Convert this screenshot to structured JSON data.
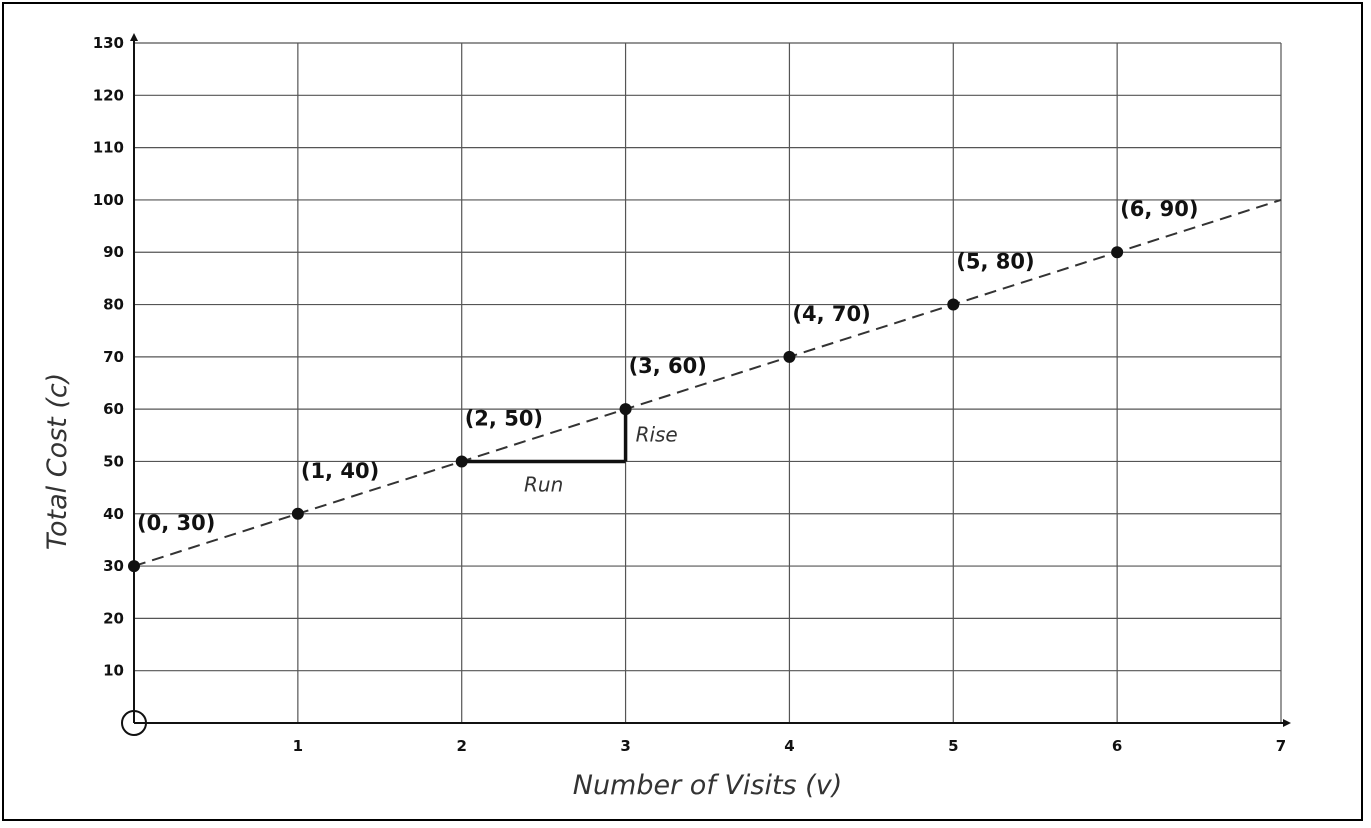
{
  "chart_data": {
    "type": "scatter",
    "xlabel": "Number of Visits (v)",
    "ylabel": "Total Cost (c)",
    "xlim": [
      0,
      7
    ],
    "ylim": [
      0,
      130
    ],
    "x_ticks": [
      "1",
      "2",
      "3",
      "4",
      "5",
      "6",
      "7"
    ],
    "y_ticks": [
      "10",
      "20",
      "30",
      "40",
      "50",
      "60",
      "70",
      "80",
      "90",
      "100",
      "110",
      "120",
      "130"
    ],
    "grid": true,
    "points": [
      {
        "x": 0,
        "y": 30,
        "label": "(0, 30)"
      },
      {
        "x": 1,
        "y": 40,
        "label": "(1, 40)"
      },
      {
        "x": 2,
        "y": 50,
        "label": "(2, 50)"
      },
      {
        "x": 3,
        "y": 60,
        "label": "(3, 60)"
      },
      {
        "x": 4,
        "y": 70,
        "label": "(4, 70)"
      },
      {
        "x": 5,
        "y": 80,
        "label": "(5, 80)"
      },
      {
        "x": 6,
        "y": 90,
        "label": "(6, 90)"
      }
    ],
    "trend_line": {
      "from": [
        0,
        30
      ],
      "to": [
        7,
        100
      ],
      "style": "dashed"
    },
    "slope_triangle": {
      "from": [
        2,
        50
      ],
      "to": [
        3,
        60
      ],
      "run_label": "Run",
      "rise_label": "Rise"
    },
    "origin_marker": "circle"
  }
}
